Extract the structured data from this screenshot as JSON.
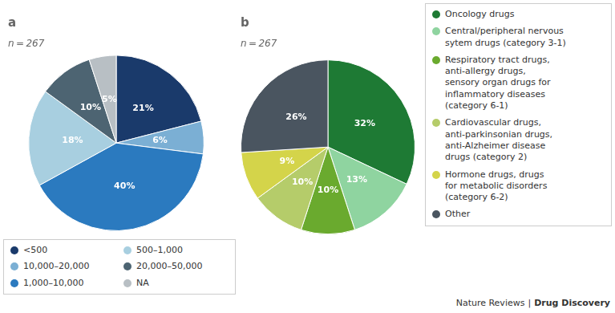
{
  "chart_data": [
    {
      "type": "pie",
      "title": "a",
      "subtitle": "n = 267",
      "categories": [
        "<500",
        "10,000–20,000",
        "1,000–10,000",
        "500–1,000",
        "20,000–50,000",
        "NA"
      ],
      "values": [
        21,
        6,
        40,
        18,
        10,
        5
      ],
      "value_labels": [
        "21%",
        "6%",
        "40%",
        "18%",
        "10%",
        "5%"
      ],
      "colors": [
        "#1a3a6b",
        "#7bafd4",
        "#2b7abf",
        "#a8cfe0",
        "#4d6472",
        "#b8bfc4"
      ],
      "data_labels": true,
      "legend": "bottom"
    },
    {
      "type": "pie",
      "title": "b",
      "subtitle": "n = 267",
      "categories": [
        "Oncology drugs",
        "Central/peripheral nervous\nsytem drugs (category 3-1)",
        "Respiratory tract drugs,\nanti-allergy drugs,\nsensory organ drugs for\ninflammatory diseases\n(category 6-1)",
        "Cardiovascular drugs,\nanti-parkinsonian drugs,\nanti-Alzheimer disease\ndrugs (category 2)",
        "Hormone drugs, drugs\nfor metabolic disorders\n(category 6-2)",
        "Other"
      ],
      "values": [
        32,
        13,
        10,
        10,
        9,
        26
      ],
      "value_labels": [
        "32%",
        "13%",
        "10%",
        "10%",
        "9%",
        "26%"
      ],
      "colors": [
        "#1e7a34",
        "#8fd4a0",
        "#6aaa2e",
        "#b5cc6a",
        "#d4d44a",
        "#4a5560"
      ],
      "data_labels": true,
      "legend": "right",
      "annotations": [
        "Nature Reviews",
        "|",
        "Drug Discovery"
      ]
    }
  ]
}
